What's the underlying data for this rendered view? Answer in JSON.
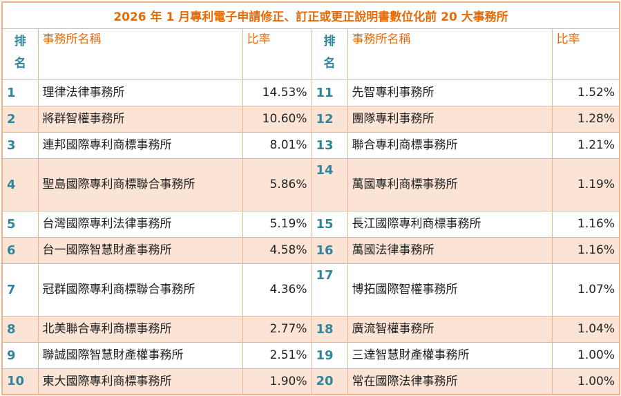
{
  "title": "2026 年 1 月專利電子申請修正、訂正或更正說明書數位化前 20 大事務所",
  "headers": {
    "rank": "排名",
    "rank_line1": "排",
    "rank_line2": "名",
    "firm": "事務所名稱",
    "ratio": "比率"
  },
  "colors": {
    "border": "#f4b183",
    "title_text": "#e36c09",
    "rank_text": "#31849b",
    "alt_row": "#fbe4d5"
  },
  "rows": [
    {
      "left": {
        "rank": "1",
        "firm": "理律法律事務所",
        "ratio": "14.53%"
      },
      "right": {
        "rank": "11",
        "firm": "先智專利事務所",
        "ratio": "1.52%"
      }
    },
    {
      "left": {
        "rank": "2",
        "firm": "將群智權事務所",
        "ratio": "10.60%"
      },
      "right": {
        "rank": "12",
        "firm": "團隊專利事務所",
        "ratio": "1.28%"
      }
    },
    {
      "left": {
        "rank": "3",
        "firm": "連邦國際專利商標事務所",
        "ratio": "8.01%"
      },
      "right": {
        "rank": "13",
        "firm": "聯合專利商標事務所",
        "ratio": "1.21%"
      }
    },
    {
      "left": {
        "rank": "4",
        "firm": "聖島國際專利商標聯合事務所",
        "ratio": "5.86%"
      },
      "right": {
        "rank": "14",
        "firm": "萬國專利商標事務所",
        "ratio": "1.19%"
      }
    },
    {
      "left": {
        "rank": "5",
        "firm": "台灣國際專利法律事務所",
        "ratio": "5.19%"
      },
      "right": {
        "rank": "15",
        "firm": "長江國際專利商標事務所",
        "ratio": "1.16%"
      }
    },
    {
      "left": {
        "rank": "6",
        "firm": "台一國際智慧財產事務所",
        "ratio": "4.58%"
      },
      "right": {
        "rank": "16",
        "firm": "萬國法律事務所",
        "ratio": "1.16%"
      }
    },
    {
      "left": {
        "rank": "7",
        "firm": "冠群國際專利商標聯合事務所",
        "ratio": "4.36%"
      },
      "right": {
        "rank": "17",
        "firm": "博拓國際智權事務所",
        "ratio": "1.07%"
      }
    },
    {
      "left": {
        "rank": "8",
        "firm": "北美聯合專利商標事務所",
        "ratio": "2.77%"
      },
      "right": {
        "rank": "18",
        "firm": "廣流智權事務所",
        "ratio": "1.04%"
      }
    },
    {
      "left": {
        "rank": "9",
        "firm": "聯誠國際智慧財產權事務所",
        "ratio": "2.51%"
      },
      "right": {
        "rank": "19",
        "firm": "三達智慧財產權事務所",
        "ratio": "1.00%"
      }
    },
    {
      "left": {
        "rank": "10",
        "firm": "東大國際專利商標事務所",
        "ratio": "1.90%"
      },
      "right": {
        "rank": "20",
        "firm": "常在國際法律事務所",
        "ratio": "1.00%"
      }
    }
  ]
}
